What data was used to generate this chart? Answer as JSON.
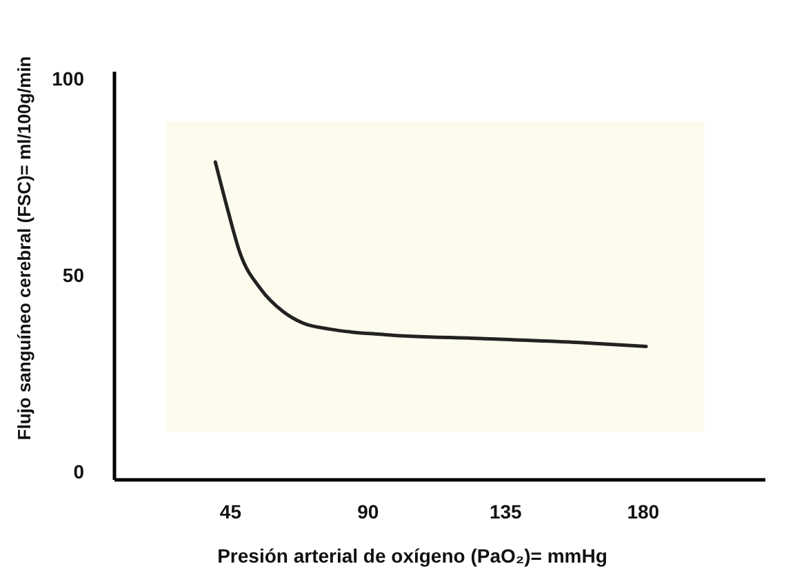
{
  "chart_data": {
    "type": "line",
    "xlabel": "Presión arterial de oxígeno (PaO₂)= mmHg",
    "ylabel": "Flujo sanguíneo cerebral (FSC)=  ml/100g/min",
    "series": [
      {
        "color": "#222222",
        "x": [
          40,
          44,
          48,
          55,
          62,
          68.5,
          77.5,
          95.5,
          127,
          159,
          181
        ],
        "values": [
          79,
          67,
          56,
          46.5,
          41,
          38,
          36.4,
          35,
          34,
          33,
          32
        ]
      }
    ],
    "xlim": [
      7,
      220
    ],
    "xticks": [
      45,
      90,
      135,
      180
    ],
    "ylim": [
      -2,
      102
    ],
    "yticks": [
      0,
      50,
      100
    ],
    "grid": false,
    "bands": [
      {
        "axis": "x",
        "from": 24,
        "to": 200,
        "color": "#fdfbee"
      }
    ],
    "marker": "none",
    "line_style": "solid"
  }
}
